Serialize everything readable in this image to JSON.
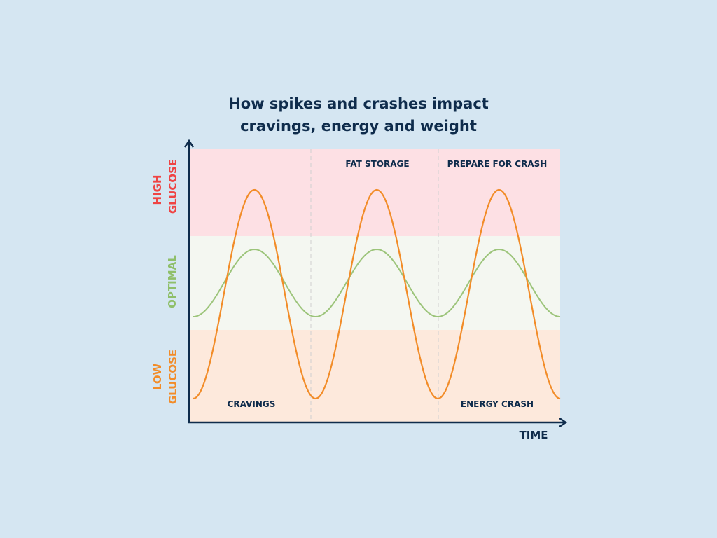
{
  "title": {
    "line1": "How spikes and crashes impact",
    "line2": "cravings, energy and weight"
  },
  "y_axis_bands": {
    "high": {
      "line1": "HIGH",
      "line2": "GLUCOSE",
      "color": "#ef4444",
      "fill": "#fde0e4"
    },
    "optimal": {
      "line1": "OPTIMAL",
      "color": "#8fbf6a",
      "fill": "#f4f7f1"
    },
    "low": {
      "line1": "LOW",
      "line2": "GLUCOSE",
      "color": "#f28c28",
      "fill": "#fde9dc"
    }
  },
  "x_axis": {
    "label": "TIME"
  },
  "annotations": {
    "fat_storage": "FAT STORAGE",
    "prepare_for_crash": "PREPARE FOR CRASH",
    "cravings": "CRAVINGS",
    "energy_crash": "ENERGY CRASH"
  },
  "curves": {
    "spike": {
      "color": "#f28c28",
      "cycles": 3,
      "phase": "starts at trough"
    },
    "steady": {
      "color": "#9cc47a",
      "cycles": 3,
      "phase": "starts at trough"
    }
  },
  "colors": {
    "background": "#d5e6f2",
    "axis": "#0f2c4c",
    "divider": "#cfcfcf"
  }
}
